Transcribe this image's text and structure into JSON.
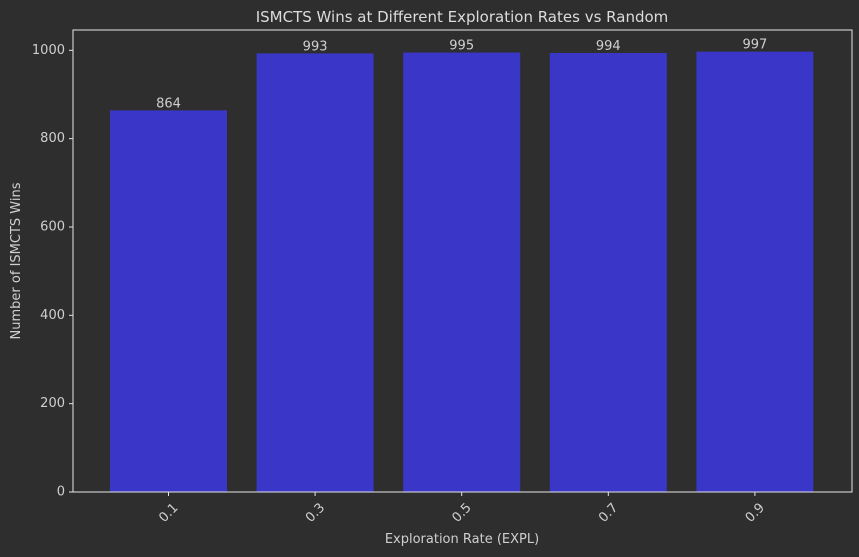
{
  "chart_data": {
    "type": "bar",
    "title": "ISMCTS Wins at Different Exploration Rates vs Random",
    "xlabel": "Exploration Rate (EXPL)",
    "ylabel": "Number of ISMCTS Wins",
    "categories": [
      "0.1",
      "0.3",
      "0.5",
      "0.7",
      "0.9"
    ],
    "values": [
      864,
      993,
      995,
      994,
      997
    ],
    "data_labels": [
      "864",
      "993",
      "995",
      "994",
      "997"
    ],
    "ylim": [
      0,
      1046
    ],
    "yticks": [
      0,
      200,
      400,
      600,
      800,
      1000
    ],
    "ytick_labels": [
      "0",
      "200",
      "400",
      "600",
      "800",
      "1000"
    ],
    "xtick_rotation": 45,
    "grid": false,
    "colors": {
      "background": "#2e2e2e",
      "bar": "#3a37c8",
      "axis": "#e6e6e6",
      "text": "#cfcfcf"
    }
  }
}
